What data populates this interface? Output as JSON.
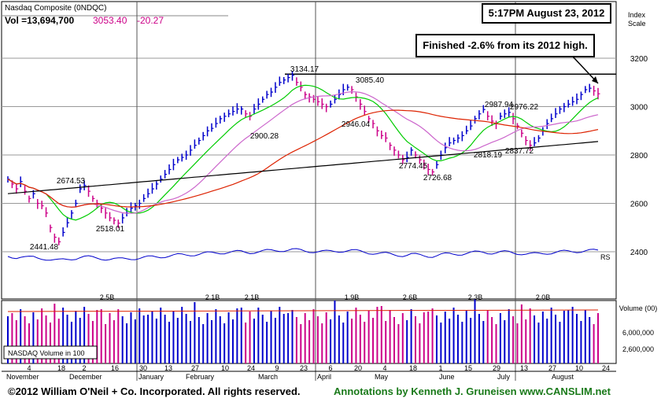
{
  "header": {
    "title": "Nasdaq Composite (0NDQC)",
    "vol_label": "Vol =13,694,700",
    "price": "3053.40",
    "change": "-20.27",
    "price_color": "#cc0088"
  },
  "timestamp_box": "5:17PM August 23, 2012",
  "annotation_box": "Finished -2.6% from its 2012 high.",
  "axis": {
    "index_label_line1": "Index",
    "index_label_line2": "Scale",
    "volume_label": "Volume (00)",
    "rs_label": "RS"
  },
  "volume_legend": "NASDAQ Volume in 100",
  "footer": {
    "copyright": "©2012 William O'Neil + Co. Incorporated. All rights reserved.",
    "credit": "Annotations by Kenneth J. Gruneisen www.CANSLIM.net"
  },
  "colors": {
    "up_bar": "#0000cc",
    "down_bar": "#cc0088",
    "ma_green": "#00cc00",
    "ma_red": "#dd2200",
    "ma_black": "#000000",
    "ma_violet": "#cc66cc",
    "rs_line": "#0000cc"
  },
  "chart_data": {
    "type": "candlestick",
    "title": "Nasdaq Composite (0NDQC)",
    "price_axis": {
      "min": 2400,
      "max": 3200,
      "ticks": [
        2400,
        2600,
        2800,
        3000,
        3200
      ]
    },
    "volume_axis": {
      "ticks": [
        "2,600,000",
        "6,000,000"
      ],
      "label": "Volume (00)"
    },
    "horizontal_line": 3134.17,
    "price_labels": [
      {
        "text": "2674.53",
        "value": 2674.53
      },
      {
        "text": "2441.48",
        "value": 2441.48
      },
      {
        "text": "2518.01",
        "value": 2518.01
      },
      {
        "text": "2900.28",
        "value": 2900.28
      },
      {
        "text": "3134.17",
        "value": 3134.17
      },
      {
        "text": "3085.40",
        "value": 3085.4
      },
      {
        "text": "2946.04",
        "value": 2946.04
      },
      {
        "text": "2774.45",
        "value": 2774.45
      },
      {
        "text": "2726.68",
        "value": 2726.68
      },
      {
        "text": "2818.19",
        "value": 2818.19
      },
      {
        "text": "2987.94",
        "value": 2987.94
      },
      {
        "text": "2976.22",
        "value": 2976.22
      },
      {
        "text": "2837.72",
        "value": 2837.72
      }
    ],
    "volume_peak_labels": [
      "2.5B",
      "2.1B",
      "2.1B",
      "1.9B",
      "2.6B",
      "2.3B",
      "2.0B"
    ],
    "x_day_labels": [
      "4",
      "18",
      "2",
      "16",
      "30",
      "13",
      "27",
      "10",
      "24",
      "9",
      "23",
      "6",
      "20",
      "4",
      "18",
      "1",
      "15",
      "29",
      "13",
      "27",
      "10",
      "24"
    ],
    "x_month_labels": [
      "November",
      "December",
      "January",
      "February",
      "March",
      "April",
      "May",
      "June",
      "July",
      "August"
    ],
    "closes": [
      2700,
      2680,
      2660,
      2690,
      2650,
      2620,
      2640,
      2600,
      2590,
      2560,
      2500,
      2460,
      2441,
      2480,
      2520,
      2560,
      2600,
      2660,
      2674,
      2650,
      2620,
      2600,
      2580,
      2560,
      2540,
      2530,
      2518,
      2540,
      2560,
      2580,
      2590,
      2600,
      2620,
      2640,
      2660,
      2680,
      2700,
      2720,
      2740,
      2760,
      2780,
      2790,
      2800,
      2820,
      2840,
      2860,
      2880,
      2900,
      2910,
      2930,
      2950,
      2960,
      2970,
      2980,
      2990,
      2990,
      2970,
      2960,
      2990,
      3010,
      3030,
      3050,
      3060,
      3080,
      3100,
      3110,
      3120,
      3130,
      3100,
      3080,
      3050,
      3040,
      3030,
      3020,
      3010,
      3000,
      3010,
      3030,
      3050,
      3070,
      3080,
      3070,
      3040,
      3010,
      2980,
      2950,
      2930,
      2900,
      2880,
      2870,
      2840,
      2820,
      2800,
      2780,
      2790,
      2820,
      2800,
      2780,
      2760,
      2740,
      2730,
      2760,
      2800,
      2830,
      2850,
      2860,
      2870,
      2880,
      2900,
      2920,
      2950,
      2970,
      2988,
      2960,
      2940,
      2930,
      2960,
      2970,
      2976,
      2950,
      2920,
      2890,
      2860,
      2840,
      2850,
      2870,
      2900,
      2930,
      2950,
      2970,
      2990,
      3000,
      3010,
      3020,
      3030,
      3050,
      3070,
      3076,
      3065,
      3053
    ]
  }
}
